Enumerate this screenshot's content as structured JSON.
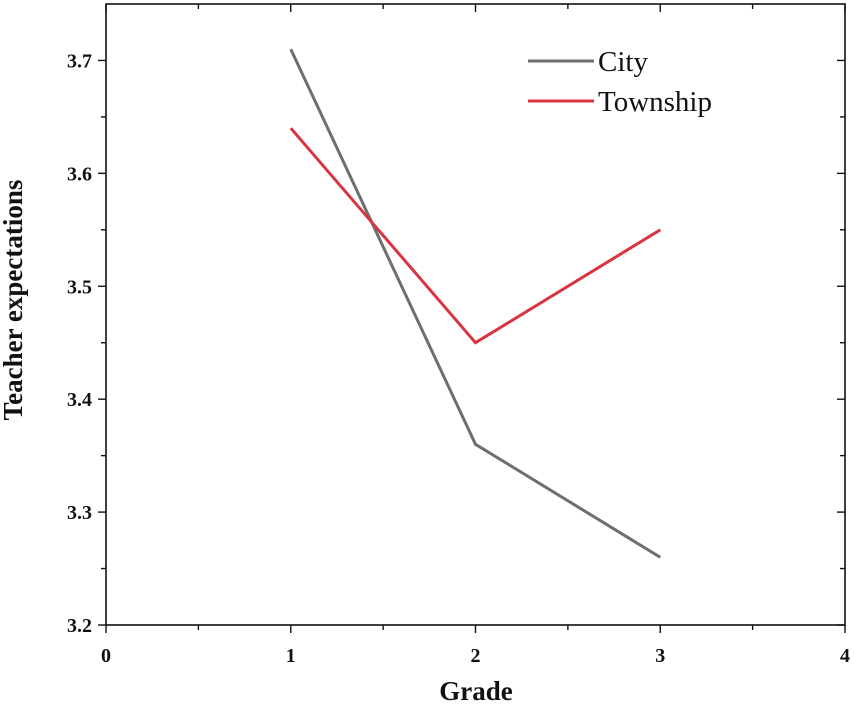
{
  "chart_data": {
    "type": "line",
    "xlabel": "Grade",
    "ylabel": "Teacher expectations",
    "xlim": [
      0,
      4
    ],
    "ylim": [
      3.2,
      3.75
    ],
    "x_ticks": [
      "0",
      "1",
      "2",
      "3",
      "4"
    ],
    "y_ticks": [
      "3.2",
      "3.3",
      "3.4",
      "3.5",
      "3.6",
      "3.7"
    ],
    "legend_position": "top-right",
    "grid": false,
    "series": [
      {
        "name": "City",
        "color": "#6e6e6e",
        "x": [
          1,
          2,
          3
        ],
        "y": [
          3.71,
          3.36,
          3.26
        ]
      },
      {
        "name": "Township",
        "color": "#d9343f",
        "x": [
          1,
          2,
          3
        ],
        "y": [
          3.64,
          3.45,
          3.55
        ]
      }
    ]
  }
}
